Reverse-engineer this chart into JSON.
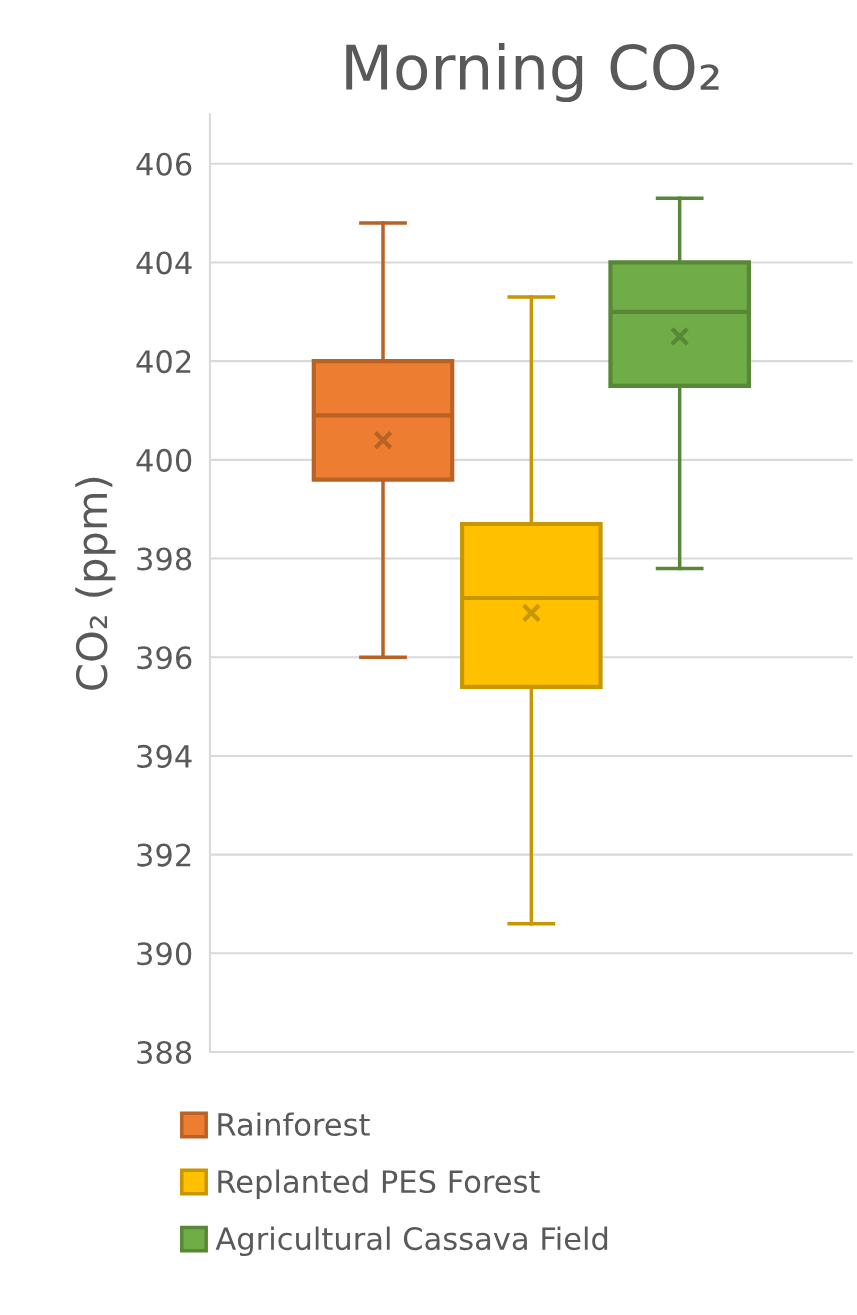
{
  "chart_data": {
    "type": "box",
    "title": "Morning CO₂",
    "ylabel": "CO₂ (ppm)",
    "categories": [
      null
    ],
    "series": [
      {
        "name": "Rainforest",
        "color": "#ed7d31",
        "boxes": [
          {
            "low": 396.0,
            "q1": 399.6,
            "median": 400.9,
            "q3": 402.0,
            "high": 404.8,
            "mean": 400.4
          }
        ]
      },
      {
        "name": "Replanted PES Forest",
        "color": "#ffc000",
        "boxes": [
          {
            "low": 390.6,
            "q1": 395.4,
            "median": 397.2,
            "q3": 398.7,
            "high": 403.3,
            "mean": 396.9
          }
        ]
      },
      {
        "name": "Agricultural Cassava Field",
        "color": "#70ad47",
        "boxes": [
          {
            "low": 397.8,
            "q1": 401.5,
            "median": 403.0,
            "q3": 404.0,
            "high": 405.3,
            "mean": 402.5
          }
        ]
      }
    ],
    "ylim": [
      388,
      407
    ],
    "yticks": [
      388,
      390,
      392,
      394,
      396,
      398,
      400,
      402,
      404,
      406
    ],
    "grid": "y",
    "legend": "bottom",
    "tick_labels": "y",
    "marker": "cross"
  }
}
